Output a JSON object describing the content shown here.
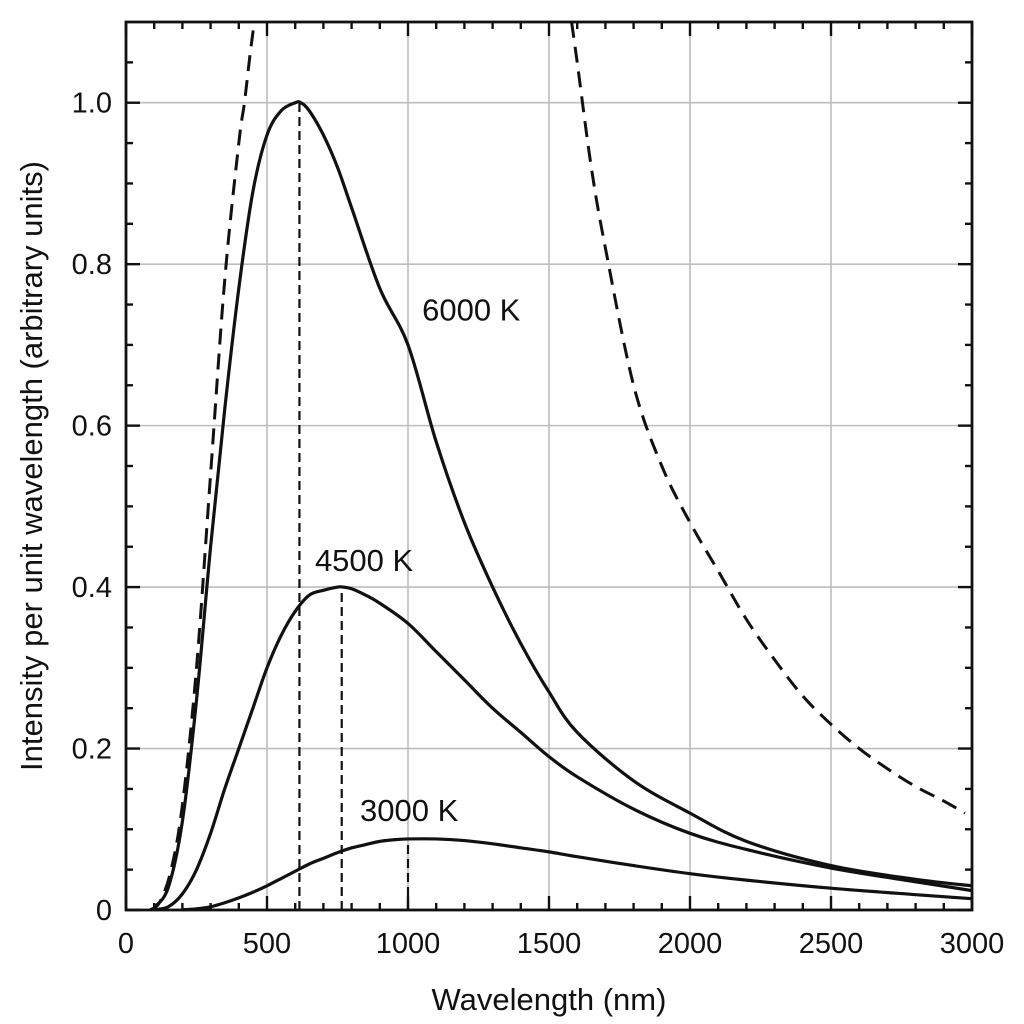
{
  "chart_data": {
    "type": "line",
    "title": "",
    "xlabel": "Wavelength (nm)",
    "ylabel": "Intensity per unit wavelength (arbitrary units)",
    "xlim": [
      0,
      3000
    ],
    "ylim": [
      0,
      1.1
    ],
    "x_ticks": [
      "0",
      "500",
      "1000",
      "1500",
      "2000",
      "2500",
      "3000"
    ],
    "y_ticks": [
      "0",
      "0.2",
      "0.4",
      "0.6",
      "0.8",
      "1.0"
    ],
    "grid": true,
    "series": [
      {
        "name": "6000 K",
        "style": "solid",
        "x": [
          100,
          150,
          200,
          250,
          300,
          350,
          400,
          450,
          500,
          550,
          600,
          620,
          650,
          700,
          750,
          800,
          900,
          1000,
          1100,
          1200,
          1300,
          1400,
          1500,
          1600,
          1800,
          2000,
          2200,
          2500,
          2800,
          3000
        ],
        "y": [
          0.003,
          0.028,
          0.11,
          0.26,
          0.45,
          0.62,
          0.77,
          0.89,
          0.96,
          0.99,
          1.0,
          1.0,
          0.99,
          0.96,
          0.92,
          0.87,
          0.77,
          0.7,
          0.58,
          0.48,
          0.4,
          0.33,
          0.27,
          0.22,
          0.16,
          0.12,
          0.085,
          0.055,
          0.038,
          0.03
        ]
      },
      {
        "name": "4500 K",
        "style": "solid",
        "x": [
          100,
          150,
          200,
          250,
          300,
          350,
          400,
          450,
          500,
          550,
          600,
          650,
          700,
          750,
          770,
          800,
          850,
          900,
          1000,
          1100,
          1200,
          1300,
          1400,
          1500,
          1600,
          1800,
          2000,
          2200,
          2500,
          2800,
          3000
        ],
        "y": [
          0.0003,
          0.004,
          0.02,
          0.05,
          0.095,
          0.15,
          0.2,
          0.25,
          0.3,
          0.34,
          0.37,
          0.39,
          0.396,
          0.4,
          0.4,
          0.398,
          0.39,
          0.38,
          0.355,
          0.32,
          0.285,
          0.25,
          0.22,
          0.19,
          0.165,
          0.125,
          0.095,
          0.075,
          0.052,
          0.035,
          0.024
        ]
      },
      {
        "name": "3000 K",
        "style": "solid",
        "x": [
          200,
          250,
          300,
          350,
          400,
          450,
          500,
          550,
          600,
          650,
          700,
          750,
          800,
          850,
          900,
          950,
          1000,
          1100,
          1200,
          1300,
          1400,
          1500,
          1600,
          1800,
          2000,
          2200,
          2500,
          2800,
          3000
        ],
        "y": [
          0.0003,
          0.0015,
          0.004,
          0.009,
          0.015,
          0.022,
          0.03,
          0.039,
          0.048,
          0.057,
          0.064,
          0.071,
          0.077,
          0.081,
          0.085,
          0.087,
          0.088,
          0.088,
          0.086,
          0.082,
          0.077,
          0.072,
          0.066,
          0.055,
          0.045,
          0.037,
          0.027,
          0.019,
          0.014
        ]
      },
      {
        "name": "",
        "style": "dashed",
        "x": [
          85,
          120,
          160,
          200,
          250,
          300,
          350,
          400,
          420,
          440,
          455
        ],
        "y": [
          0.0,
          0.01,
          0.05,
          0.13,
          0.3,
          0.54,
          0.78,
          0.95,
          1.0,
          1.06,
          1.1
        ]
      },
      {
        "name": "",
        "style": "dashed",
        "x": [
          1580,
          1600,
          1650,
          1700,
          1800,
          1900,
          2000,
          2100,
          2200,
          2300,
          2400,
          2500,
          2600,
          2700,
          2800,
          2900,
          2975
        ],
        "y": [
          1.1,
          1.05,
          0.92,
          0.82,
          0.65,
          0.55,
          0.48,
          0.42,
          0.36,
          0.31,
          0.265,
          0.23,
          0.2,
          0.175,
          0.153,
          0.135,
          0.12
        ]
      }
    ],
    "peak_lines": [
      {
        "x": 615,
        "y": 1.0
      },
      {
        "x": 765,
        "y": 0.4
      },
      {
        "x": 1000,
        "y": 0.088
      }
    ],
    "annotations": [
      {
        "text": "6000 K",
        "x": 1050,
        "y": 0.73
      },
      {
        "text": "4500 K",
        "x": 670,
        "y": 0.42
      },
      {
        "text": "3000 K",
        "x": 830,
        "y": 0.11
      }
    ]
  }
}
